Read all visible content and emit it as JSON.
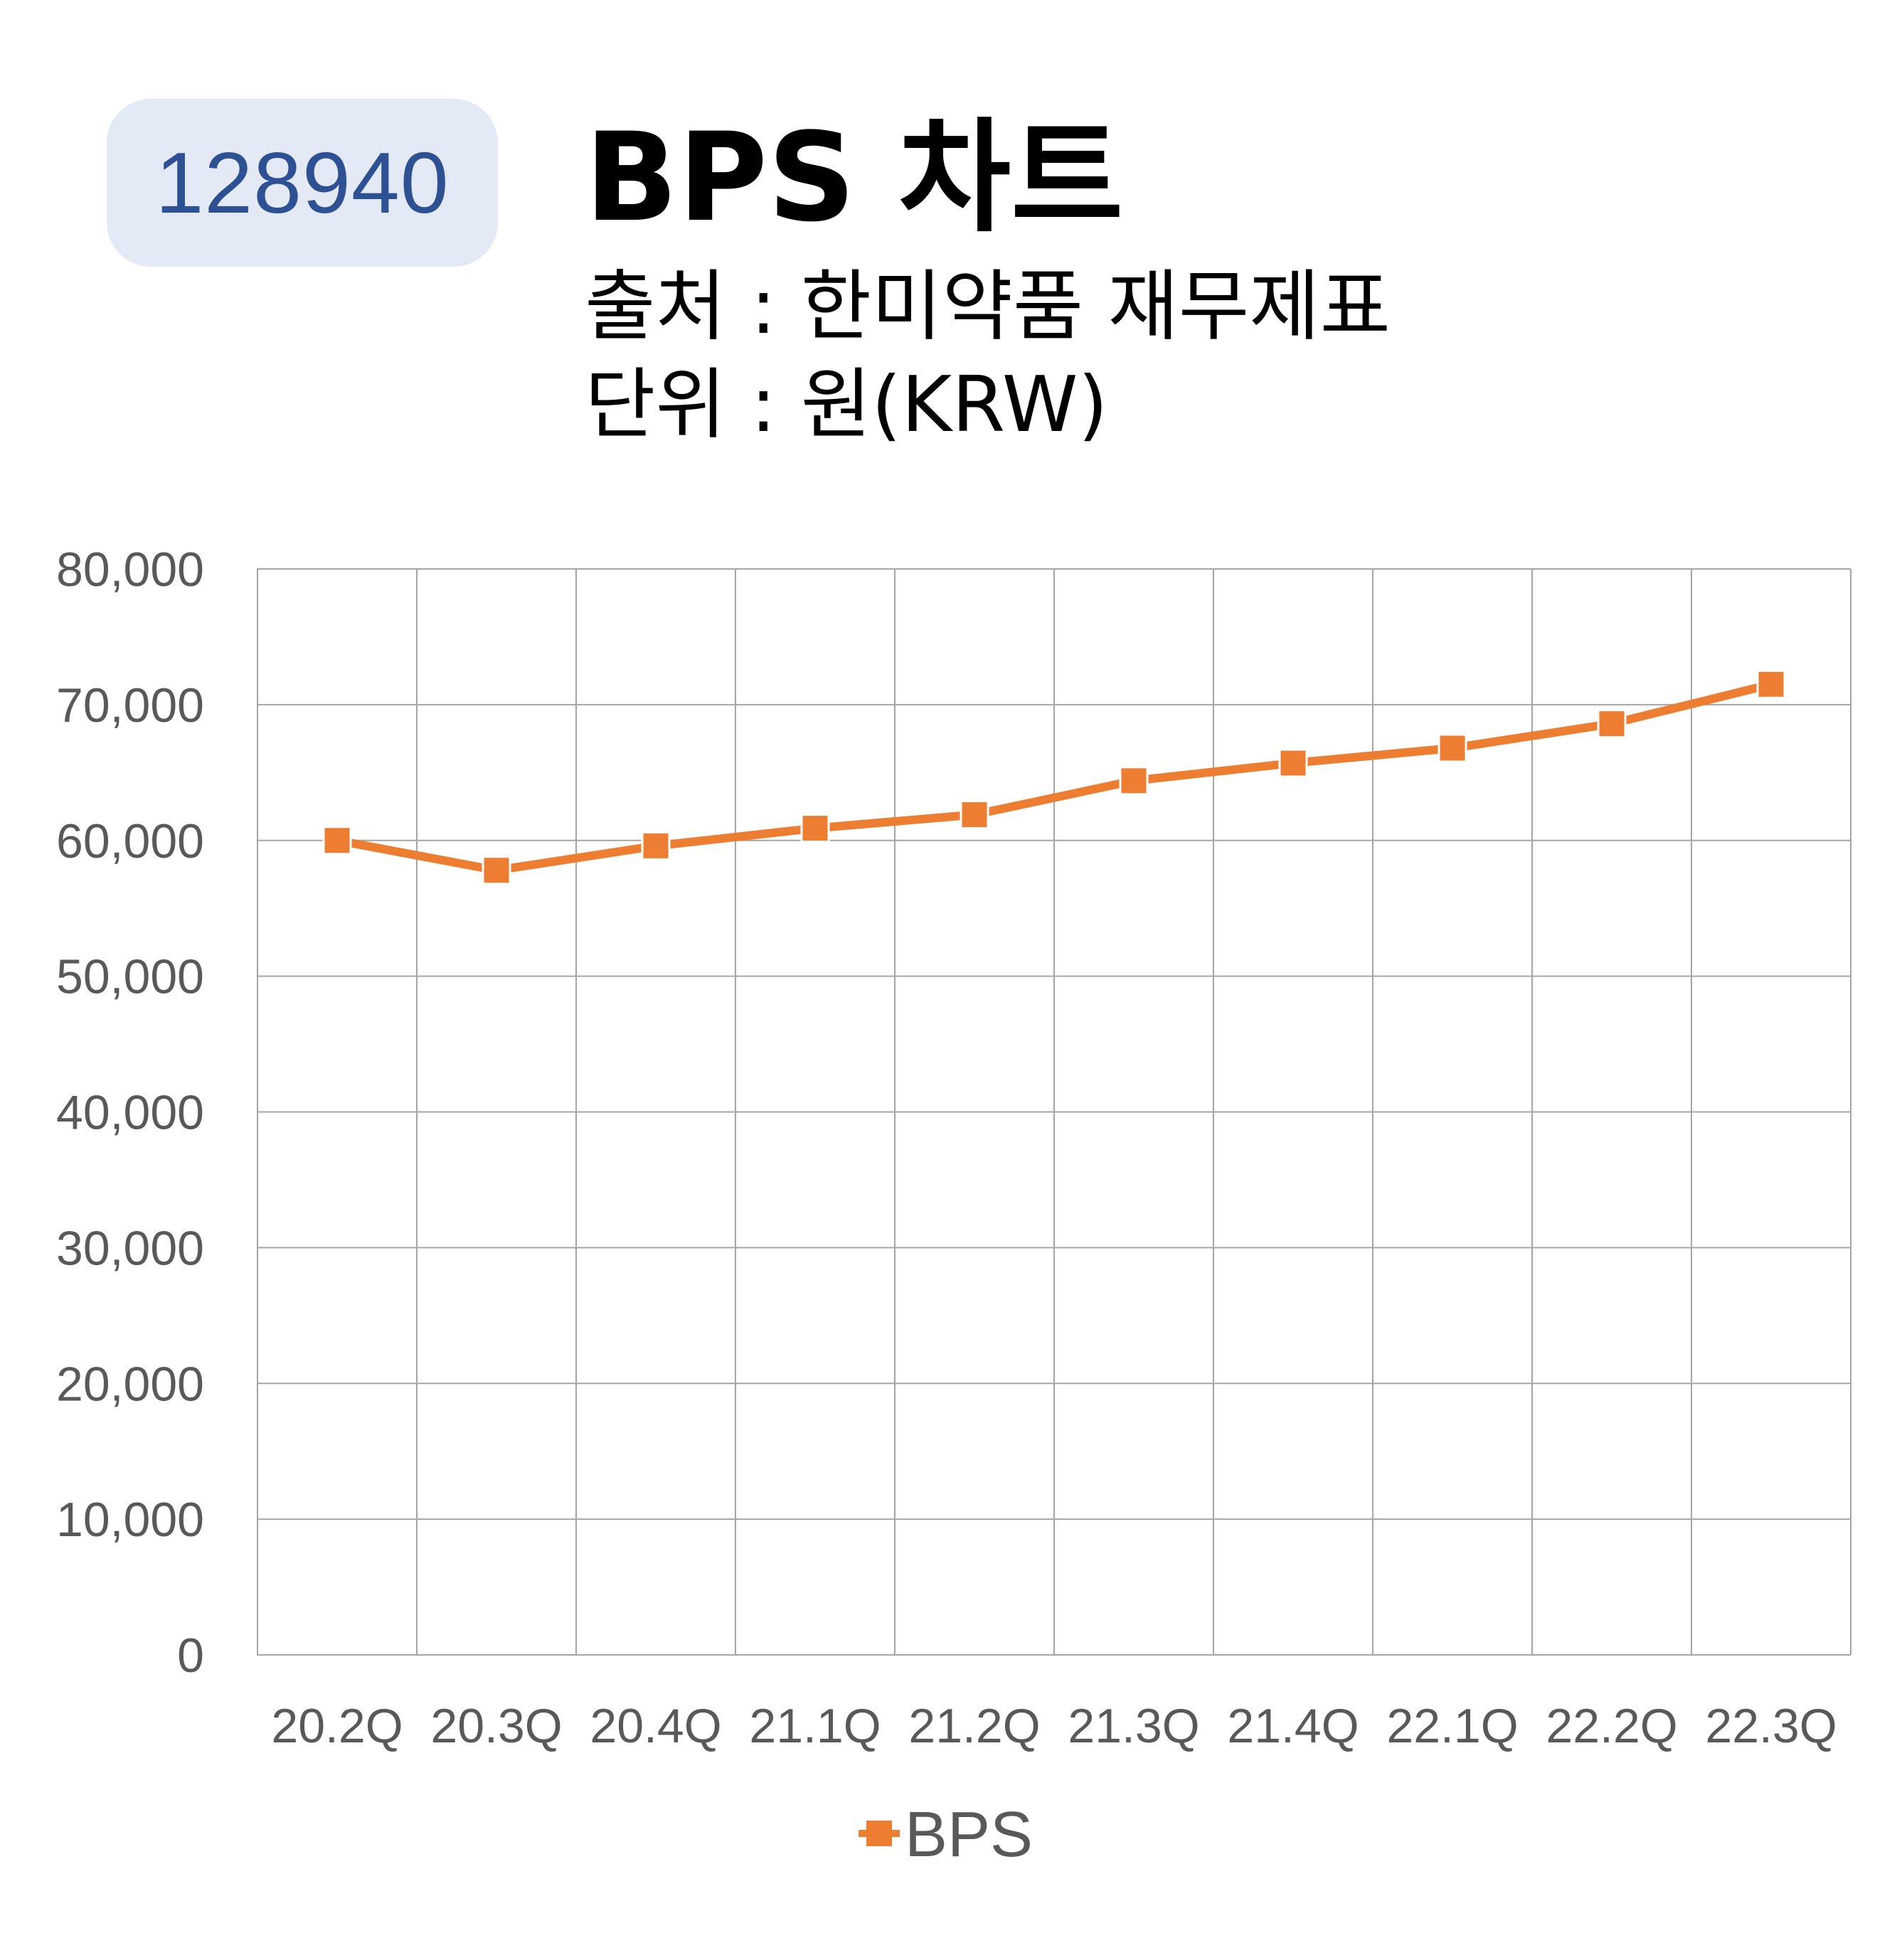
{
  "header": {
    "code": "128940",
    "title": "BPS 차트",
    "source": "출처 : 한미약품 재무제표",
    "unit": "단위 : 원(KRW)"
  },
  "colors": {
    "series": "#ed7d31",
    "grid": "#a6a6a6",
    "tick_text": "#595959",
    "badge_bg": "#e3e9f5",
    "badge_text": "#2d5193"
  },
  "chart_data": {
    "type": "line",
    "categories": [
      "20.2Q",
      "20.3Q",
      "20.4Q",
      "21.1Q",
      "21.2Q",
      "21.3Q",
      "21.4Q",
      "22.1Q",
      "22.2Q",
      "22.3Q"
    ],
    "series": [
      {
        "name": "BPS",
        "values": [
          60000,
          57800,
          59600,
          60900,
          61900,
          64400,
          65700,
          66800,
          68600,
          71500
        ],
        "marker": "square"
      }
    ],
    "y_ticks": [
      "0",
      "10,000",
      "20,000",
      "30,000",
      "40,000",
      "50,000",
      "60,000",
      "70,000",
      "80,000"
    ],
    "ylim": [
      0,
      80000
    ],
    "y_step": 10000,
    "grid": true,
    "legend": "bottom-center"
  }
}
